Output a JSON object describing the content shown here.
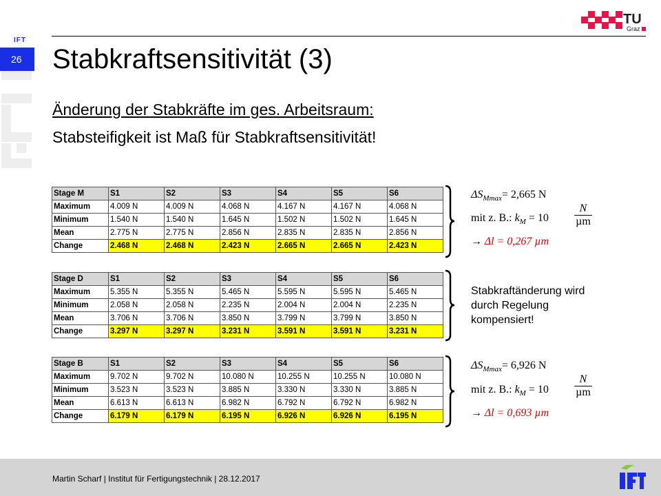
{
  "header": {
    "slide_number": "26",
    "ift_small": "IFT",
    "title": "Stabkraftsensitivität (3)",
    "subtitle_1": "Änderung der Stabkräfte im ges. Arbeitsraum:",
    "subtitle_2": "Stabsteifigkeit ist Maß für Stabkraftsensitivität!"
  },
  "logo": {
    "tu_text": "TU",
    "tu_sub": "Graz",
    "tu_color": "#e4154b"
  },
  "tables": [
    {
      "headers": [
        "Stage M",
        "S1",
        "S2",
        "S3",
        "S4",
        "S5",
        "S6"
      ],
      "rows": [
        {
          "label": "Maximum",
          "values": [
            "4.009 N",
            "4.009 N",
            "4.068 N",
            "4.167 N",
            "4.167 N",
            "4.068 N"
          ]
        },
        {
          "label": "Minimum",
          "values": [
            "1.540 N",
            "1.540 N",
            "1.645 N",
            "1.502 N",
            "1.502 N",
            "1.645 N"
          ]
        },
        {
          "label": "Mean",
          "values": [
            "2.775 N",
            "2.775 N",
            "2.856 N",
            "2.835 N",
            "2.835 N",
            "2.856 N"
          ]
        },
        {
          "label": "Change",
          "values": [
            "2.468 N",
            "2.468 N",
            "2.423 N",
            "2.665 N",
            "2.665 N",
            "2.423 N"
          ]
        }
      ]
    },
    {
      "headers": [
        "Stage D",
        "S1",
        "S2",
        "S3",
        "S4",
        "S5",
        "S6"
      ],
      "rows": [
        {
          "label": "Maximum",
          "values": [
            "5.355 N",
            "5.355 N",
            "5.465 N",
            "5.595 N",
            "5.595 N",
            "5.465 N"
          ]
        },
        {
          "label": "Minimum",
          "values": [
            "2.058 N",
            "2.058 N",
            "2.235 N",
            "2.004 N",
            "2.004 N",
            "2.235 N"
          ]
        },
        {
          "label": "Mean",
          "values": [
            "3.706 N",
            "3.706 N",
            "3.850 N",
            "3.799 N",
            "3.799 N",
            "3.850 N"
          ]
        },
        {
          "label": "Change",
          "values": [
            "3.297 N",
            "3.297 N",
            "3.231 N",
            "3.591 N",
            "3.591 N",
            "3.231 N"
          ]
        }
      ]
    },
    {
      "headers": [
        "Stage B",
        "S1",
        "S2",
        "S3",
        "S4",
        "S5",
        "S6"
      ],
      "rows": [
        {
          "label": "Maximum",
          "values": [
            "9.702 N",
            "9.702 N",
            "10.080 N",
            "10.255 N",
            "10.255 N",
            "10.080 N"
          ]
        },
        {
          "label": "Minimum",
          "values": [
            "3.523 N",
            "3.523 N",
            "3.885 N",
            "3.330 N",
            "3.330 N",
            "3.885 N"
          ]
        },
        {
          "label": "Mean",
          "values": [
            "6.613 N",
            "6.613 N",
            "6.982 N",
            "6.792 N",
            "6.792 N",
            "6.982 N"
          ]
        },
        {
          "label": "Change",
          "values": [
            "6.179 N",
            "6.179 N",
            "6.195 N",
            "6.926 N",
            "6.926 N",
            "6.195 N"
          ]
        }
      ]
    }
  ],
  "annotations": {
    "m": {
      "delta_prefix": "ΔS",
      "delta_sub": "Mmax",
      "delta_value": "= 2,665 N",
      "stiff_prefix": "mit z. B.: ",
      "stiff_var": "k",
      "stiff_sub": "M",
      "stiff_eq": " = 10",
      "frac_num": "N",
      "frac_den": "µm",
      "result_arrow": "→",
      "result": "Δl = 0,267 µm"
    },
    "d": {
      "note": "Stabkraftänderung wird durch Regelung kompensiert!"
    },
    "b": {
      "delta_prefix": "ΔS",
      "delta_sub": "Mmax",
      "delta_value": "= 6,926 N",
      "stiff_prefix": "mit z. B.: ",
      "stiff_var": "k",
      "stiff_sub": "M",
      "stiff_eq": " = 10",
      "frac_num": "N",
      "frac_den": "µm",
      "result_arrow": "→",
      "result": "Δl = 0,693 µm"
    }
  },
  "footer": {
    "text": "Martin Scharf | Institut für Fertigungstechnik | 28.12.2017",
    "logo_text": "IFT"
  },
  "colors": {
    "accent_blue": "#1a2ee8",
    "highlight_yellow": "#ffff00",
    "result_red": "#e00000",
    "header_gray": "#d6d6d6",
    "footer_gray": "#d4d4d4"
  }
}
